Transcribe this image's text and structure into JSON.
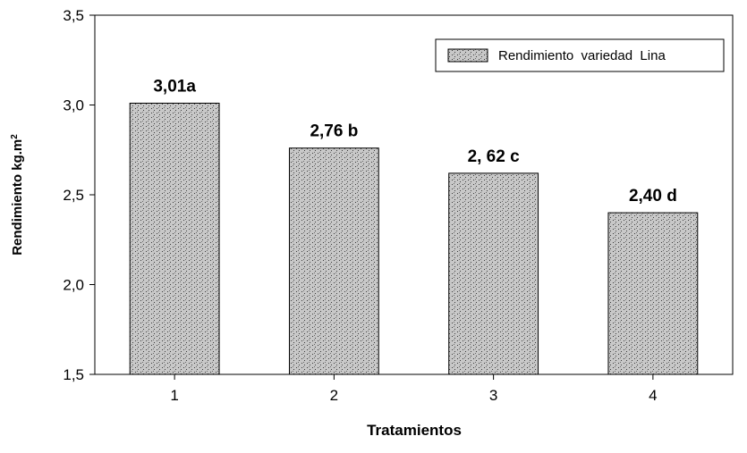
{
  "chart_data": {
    "type": "bar",
    "categories": [
      "1",
      "2",
      "3",
      "4"
    ],
    "values": [
      3.01,
      2.76,
      2.62,
      2.4
    ],
    "data_labels": [
      "3,01a",
      "2,76 b",
      "2, 62 c",
      "2,40 d"
    ],
    "xlabel": "Tratamientos",
    "ylabel": "Rendimiento  kg.m",
    "ylabel_superscript": "2",
    "ylim": [
      1.5,
      3.5
    ],
    "yticks": [
      {
        "value": 1.5,
        "label": "1,5"
      },
      {
        "value": 2.0,
        "label": "2,0"
      },
      {
        "value": 2.5,
        "label": "2,5"
      },
      {
        "value": 3.0,
        "label": "3,0"
      },
      {
        "value": 3.5,
        "label": "3,5"
      }
    ],
    "series": [
      {
        "name": "Rendimiento  variedad  Lina",
        "values": [
          3.01,
          2.76,
          2.62,
          2.4
        ]
      }
    ],
    "legend_position": "top-right",
    "grid": false,
    "colors": {
      "bar_fill": "#c8c8c8",
      "bar_dots": "#3a3a3a",
      "axis": "#000000",
      "text": "#000000"
    }
  }
}
